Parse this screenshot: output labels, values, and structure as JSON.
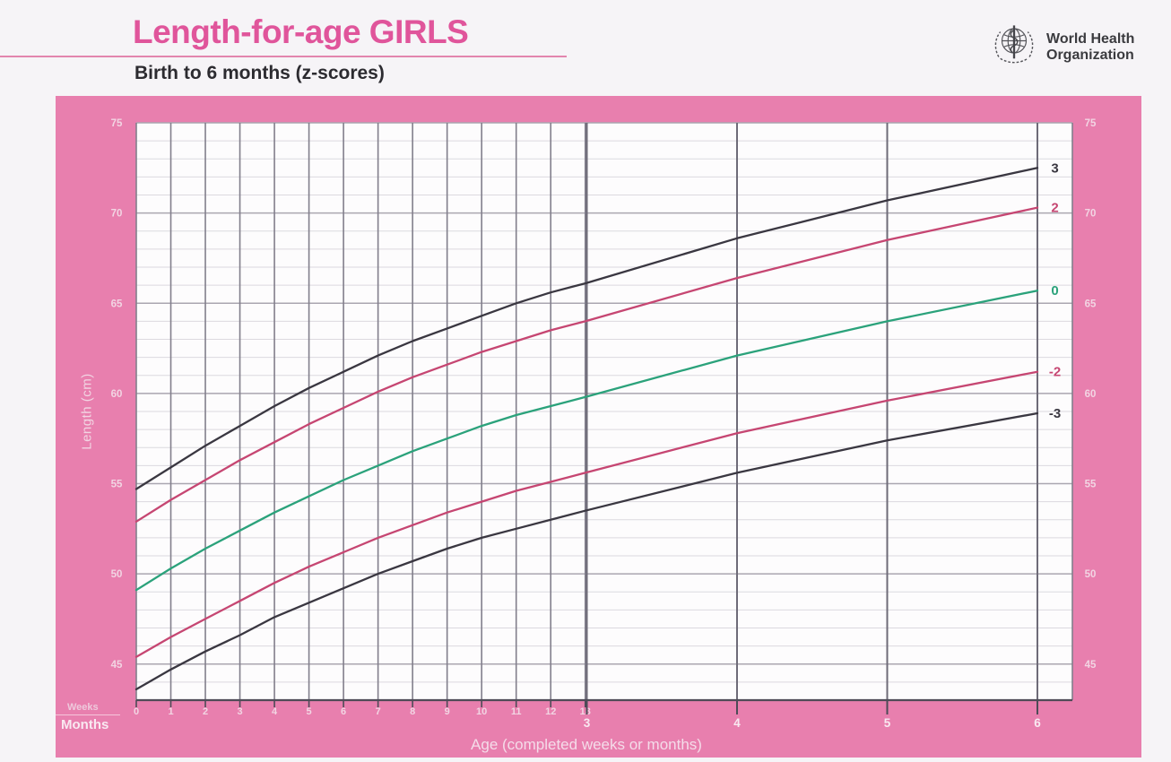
{
  "header": {
    "title": "Length-for-age GIRLS",
    "subtitle": "Birth to 6 months (z-scores)"
  },
  "logo": {
    "line1": "World Health",
    "line2": "Organization"
  },
  "chart_data": {
    "type": "line",
    "title": "Length-for-age GIRLS",
    "subtitle": "Birth to 6 months (z-scores)",
    "xlabel": "Age (completed weeks or months)",
    "ylabel": "Length (cm)",
    "weeks_scale_label": "Weeks",
    "months_scale_label": "Months",
    "ylim": [
      43,
      75
    ],
    "y_major_ticks": [
      75,
      70,
      65,
      60,
      55,
      50,
      45
    ],
    "y_minor_step": 1,
    "x_weeks": [
      0,
      1,
      2,
      3,
      4,
      5,
      6,
      7,
      8,
      9,
      10,
      11,
      12,
      13
    ],
    "x_months": [
      3,
      4,
      5,
      6
    ],
    "x_days": [
      0,
      7,
      14,
      21,
      28,
      35,
      42,
      49,
      56,
      63,
      70,
      77,
      84,
      91,
      121.76,
      152.2,
      182.64
    ],
    "x_total_days": 182.64,
    "grid": true,
    "legend_position": "right-edge-labels",
    "series": [
      {
        "name": "3",
        "zscore": "+3 SD",
        "color": "#3a3741",
        "values": [
          54.7,
          55.9,
          57.1,
          58.2,
          59.3,
          60.3,
          61.2,
          62.1,
          62.9,
          63.6,
          64.3,
          65.0,
          65.6,
          66.1,
          68.6,
          70.7,
          72.5
        ]
      },
      {
        "name": "2",
        "zscore": "+2 SD",
        "color": "#c64672",
        "values": [
          52.9,
          54.1,
          55.2,
          56.3,
          57.3,
          58.3,
          59.2,
          60.1,
          60.9,
          61.6,
          62.3,
          62.9,
          63.5,
          64.0,
          66.4,
          68.5,
          70.3
        ]
      },
      {
        "name": "0",
        "zscore": "median",
        "color": "#2ba27b",
        "values": [
          49.1,
          50.3,
          51.4,
          52.4,
          53.4,
          54.3,
          55.2,
          56.0,
          56.8,
          57.5,
          58.2,
          58.8,
          59.3,
          59.8,
          62.1,
          64.0,
          65.7
        ]
      },
      {
        "name": "-2",
        "zscore": "-2 SD",
        "color": "#c64672",
        "values": [
          45.4,
          46.5,
          47.5,
          48.5,
          49.5,
          50.4,
          51.2,
          52.0,
          52.7,
          53.4,
          54.0,
          54.6,
          55.1,
          55.6,
          57.8,
          59.6,
          61.2
        ]
      },
      {
        "name": "-3",
        "zscore": "-3 SD",
        "color": "#3a3741",
        "values": [
          43.6,
          44.7,
          45.7,
          46.6,
          47.6,
          48.4,
          49.2,
          50.0,
          50.7,
          51.4,
          52.0,
          52.5,
          53.0,
          53.5,
          55.6,
          57.4,
          58.9
        ]
      }
    ]
  },
  "colors": {
    "panel_pink": "#e87fae",
    "plot_bg": "#fdfcfd",
    "minor_grid": "#dcd9df",
    "major_grid": "#aaa6b0",
    "week_line": "#827f8c",
    "month_line": "#6e6b78",
    "axis_line": "#4e4b57",
    "tick_text": "#f2d5e3",
    "months_text": "#f9e9f1",
    "title_pink": "#e0559b"
  }
}
